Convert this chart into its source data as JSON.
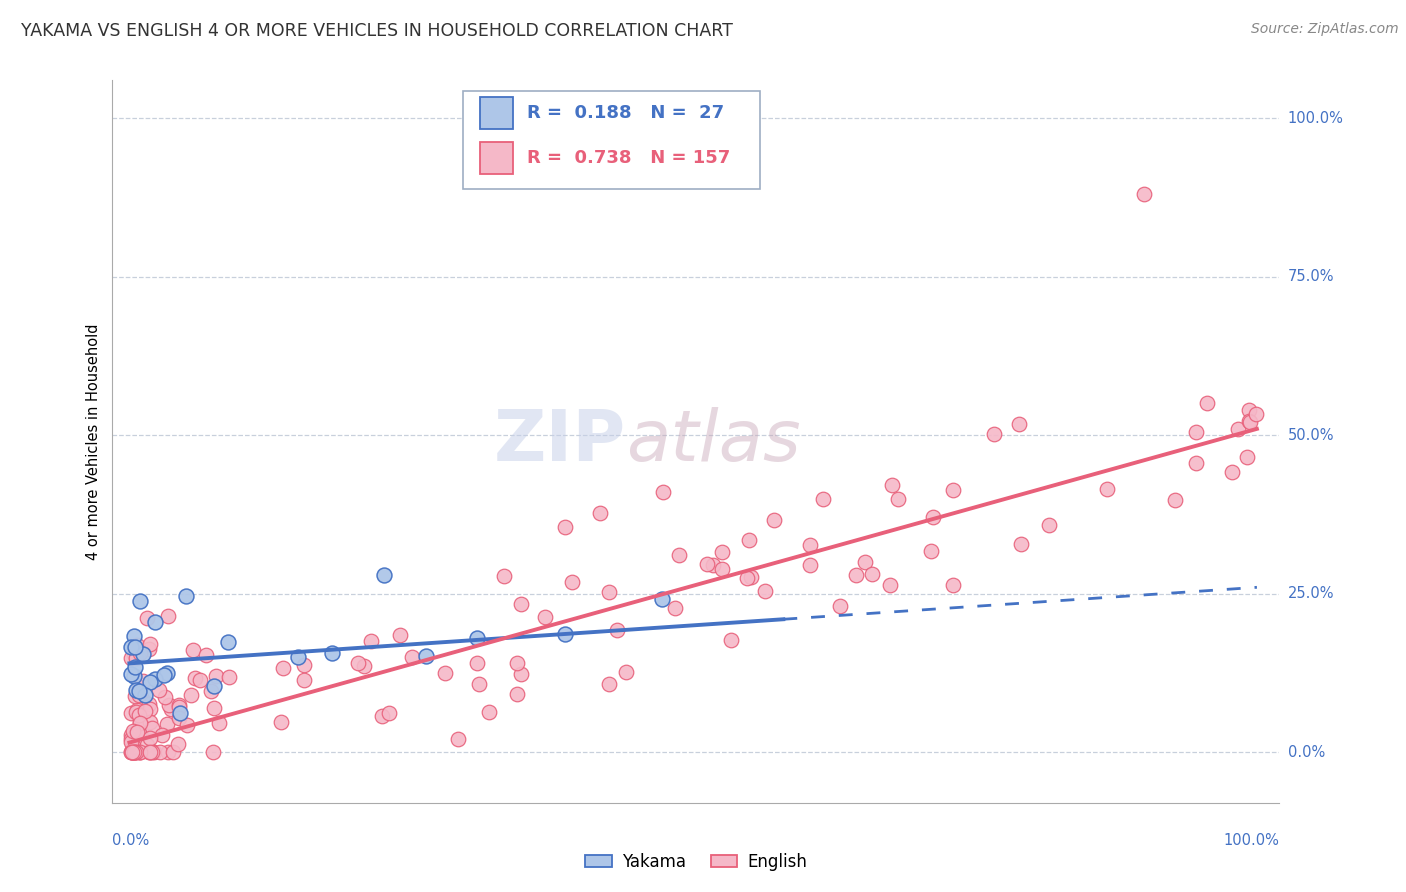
{
  "title": "YAKAMA VS ENGLISH 4 OR MORE VEHICLES IN HOUSEHOLD CORRELATION CHART",
  "source_text": "Source: ZipAtlas.com",
  "ylabel": "4 or more Vehicles in Household",
  "y_tick_labels": [
    "0.0%",
    "25.0%",
    "50.0%",
    "75.0%",
    "100.0%"
  ],
  "y_tick_values": [
    0,
    25,
    50,
    75,
    100
  ],
  "watermark_zip": "ZIP",
  "watermark_atlas": "atlas",
  "yakama_R": 0.188,
  "yakama_N": 27,
  "english_R": 0.738,
  "english_N": 157,
  "yakama_color": "#aec6e8",
  "yakama_line_color": "#4472c4",
  "english_color": "#f5b8c8",
  "english_line_color": "#e8607a",
  "title_fontsize": 12.5,
  "source_fontsize": 10,
  "axis_label_fontsize": 10.5,
  "tick_fontsize": 10.5,
  "legend_fontsize": 13,
  "xlim": [
    0,
    100
  ],
  "ylim": [
    0,
    100
  ],
  "background_color": "#ffffff",
  "yakama_slope": 0.12,
  "yakama_intercept": 14.0,
  "yakama_data_end": 58,
  "english_slope": 0.495,
  "english_intercept": 1.5
}
